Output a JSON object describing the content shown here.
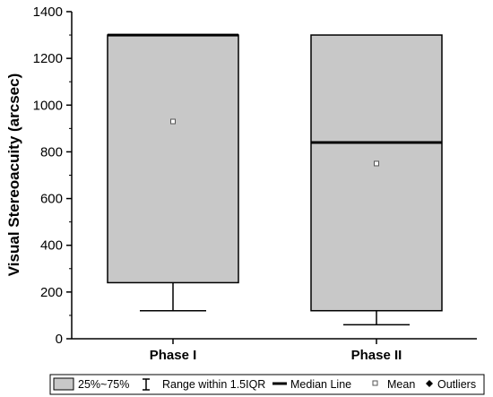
{
  "chart_data": {
    "type": "box",
    "ylabel": "Visual Stereoacuity (arcsec)",
    "xlabel": "",
    "ylim": [
      0,
      1400
    ],
    "yticks": [
      "0",
      "200",
      "400",
      "600",
      "800",
      "1000",
      "1200",
      "1400"
    ],
    "categories": [
      "Phase I",
      "Phase II"
    ],
    "boxes": [
      {
        "category": "Phase I",
        "whisker_low": 120,
        "q1": 240,
        "median": 1300,
        "q3": 1300,
        "whisker_high": 1300,
        "mean": 930
      },
      {
        "category": "Phase II",
        "whisker_low": 60,
        "q1": 120,
        "median": 840,
        "q3": 1300,
        "whisker_high": 1300,
        "mean": 750
      }
    ],
    "legend": {
      "position": "bottom",
      "items": [
        {
          "key": "box",
          "label": "25%~75%"
        },
        {
          "key": "range",
          "label": "Range within 1.5IQR"
        },
        {
          "key": "median",
          "label": "Median Line"
        },
        {
          "key": "mean",
          "label": "Mean"
        },
        {
          "key": "outlier",
          "label": "Outliers"
        }
      ]
    },
    "colors": {
      "box_fill": "#c8c8c8",
      "line": "#000000"
    },
    "grid": false
  }
}
